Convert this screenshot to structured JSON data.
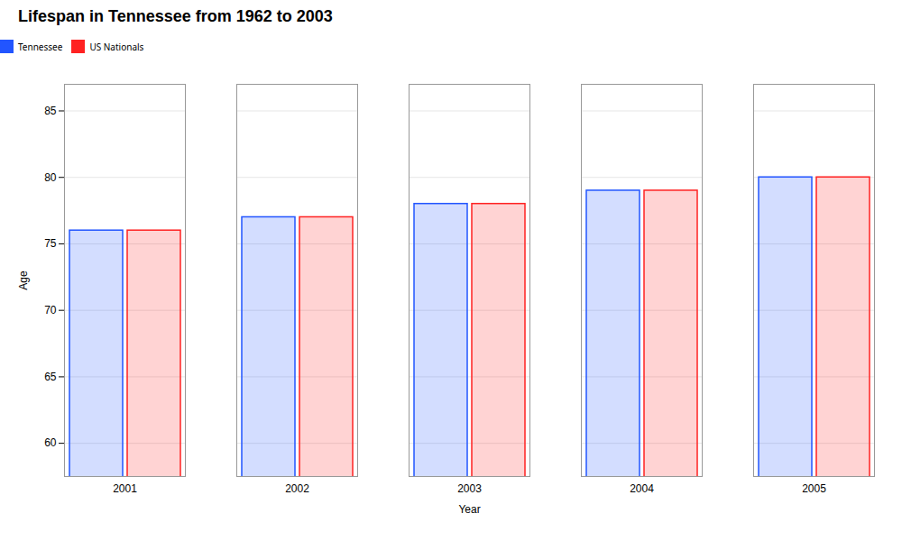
{
  "chart_data": {
    "type": "bar",
    "title": "Lifespan in Tennessee from 1962 to 2003",
    "xlabel": "Year",
    "ylabel": "Age",
    "categories": [
      "2001",
      "2002",
      "2003",
      "2004",
      "2005"
    ],
    "series": [
      {
        "name": "Tennessee",
        "color": "#2255ff",
        "values": [
          76.0,
          77.0,
          78.0,
          79.0,
          80.0
        ]
      },
      {
        "name": "US Nationals",
        "color": "#ff2222",
        "values": [
          76.0,
          77.0,
          78.0,
          79.0,
          80.0
        ]
      }
    ],
    "ylim": [
      57.5,
      87
    ],
    "yticks": [
      60,
      65,
      70,
      75,
      80,
      85
    ],
    "grid": true,
    "legend": "top"
  }
}
